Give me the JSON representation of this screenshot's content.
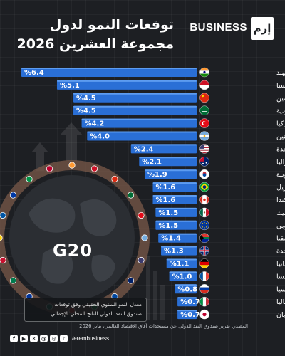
{
  "header": {
    "title_line1": "توقعات النمو لدول",
    "title_line2": "مجموعة العشرين 2026",
    "brand": "BUSINESS",
    "logo_text": "إرم"
  },
  "center_badge": "G20",
  "legend": {
    "line1": "معدل النمو السنوي الحقيقي وفق توقعات",
    "line2": "صندوق النقد الدولي للناتج المحلي الإجمالي"
  },
  "source": "المصدر: تقرير صندوق النقد الدولي عن مستجدات آفاق الاقتصاد العالمي، يناير 2026",
  "social": {
    "icons": [
      "facebook-icon",
      "youtube-icon",
      "x-icon",
      "threads-icon",
      "instagram-icon",
      "tiktok-icon"
    ],
    "handle": "/erembusiness"
  },
  "colors": {
    "bar": "#2a6fd6",
    "bar_edge": "#5d9cf0",
    "background": "#1d1f23"
  },
  "chart_data": {
    "type": "bar",
    "orientation": "horizontal",
    "value_prefix": "%",
    "categories": [
      "الهند",
      "إندونيسيا",
      "الصين",
      "السعودية",
      "تركيا",
      "الأرجنتين",
      "الولايات المتحدة",
      "أستراليا",
      "كوريا الجنوبية",
      "البرازيل",
      "كندا",
      "المكسيك",
      "الاتحاد الأوروبي",
      "جنوب إفريقيا",
      "المملكة المتحدة",
      "ألمانيا",
      "فرنسا",
      "روسيا",
      "إيطاليا",
      "اليابان"
    ],
    "value_labels": [
      "6.4",
      "5.1",
      "4.5",
      "4.5",
      "4.2",
      "4.0",
      "2.4",
      "2.1",
      "1.9",
      "1.6",
      "1.6",
      "1.5",
      "1.5",
      "1.4",
      "1.3",
      "1.1",
      "1.0",
      "0.8",
      "0.7",
      "0.7"
    ],
    "values": [
      6.4,
      5.1,
      4.5,
      4.5,
      4.2,
      4.0,
      2.4,
      2.1,
      1.9,
      1.6,
      1.6,
      1.5,
      1.5,
      1.4,
      1.3,
      1.1,
      1.0,
      0.8,
      0.7,
      0.7
    ],
    "flags": [
      "india",
      "indonesia",
      "china",
      "saudi",
      "turkey",
      "argentina",
      "usa",
      "australia",
      "korea",
      "brazil",
      "canada",
      "mexico",
      "eu",
      "south-africa",
      "uk",
      "germany",
      "france",
      "russia",
      "italy",
      "japan"
    ],
    "xlim": [
      0,
      6.4
    ],
    "grid": false,
    "legend_position": "bottom-left"
  }
}
